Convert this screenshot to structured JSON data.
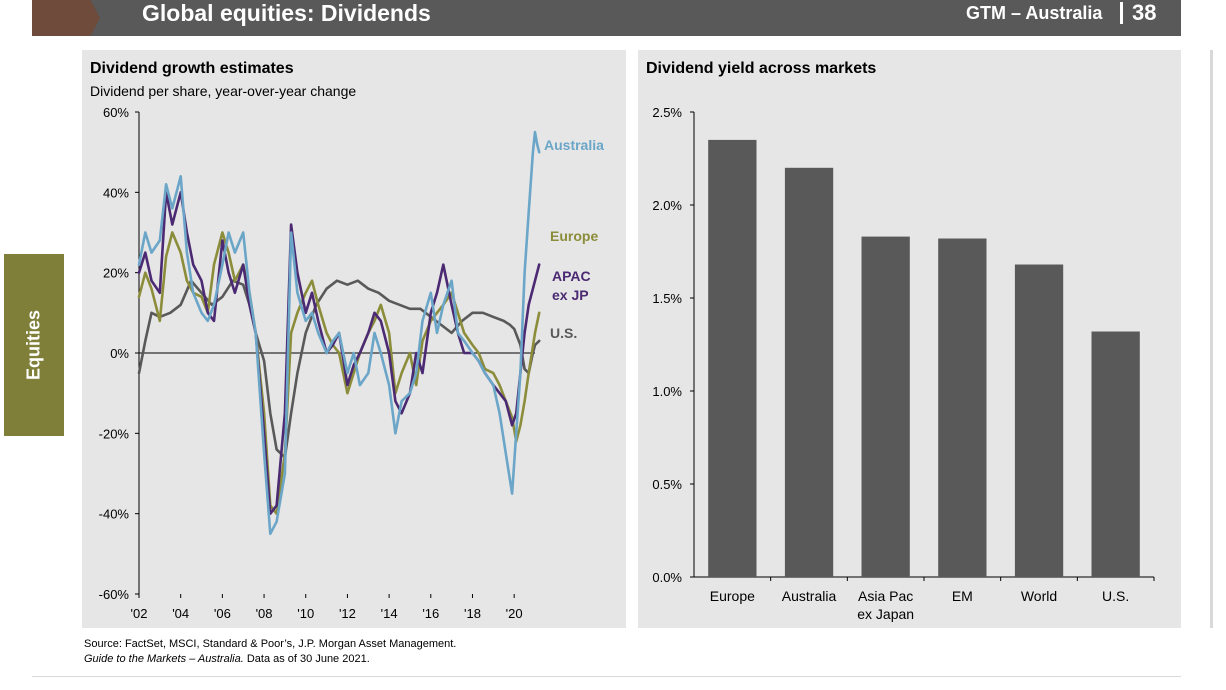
{
  "header": {
    "title": "Global equities: Dividends",
    "right_label": "GTM – Australia",
    "page_number": "38",
    "bar_color": "#595959",
    "accent_color": "#6e4b3a"
  },
  "side_tab": {
    "label": "Equities",
    "color": "#7f7f3a"
  },
  "left_panel": {
    "title": "Dividend growth estimates",
    "subtitle": "Dividend per share, year-over-year change"
  },
  "right_panel": {
    "title": "Dividend yield across markets"
  },
  "footer": {
    "source": "Source: FactSet, MSCI, Standard & Poor’s, J.P. Morgan Asset Management.",
    "guide_italic": "Guide to the Markets – Australia.",
    "guide_rest": " Data as of 30 June 2021."
  },
  "chart_data": [
    {
      "type": "line",
      "title": "Dividend growth estimates",
      "subtitle": "Dividend per share, year-over-year change",
      "xlabel": "",
      "ylabel": "",
      "xlim": [
        2002,
        2021
      ],
      "ylim": [
        -60,
        60
      ],
      "y_ticks": [
        60,
        40,
        20,
        0,
        -20,
        -40,
        -60
      ],
      "y_tick_labels": [
        "60%",
        "40%",
        "20%",
        "0%",
        "-20%",
        "-40%",
        "-60%"
      ],
      "x_ticks": [
        2002,
        2004,
        2006,
        2008,
        2010,
        2012,
        2014,
        2016,
        2018,
        2020
      ],
      "x_tick_labels": [
        "'02",
        "'04",
        "'06",
        "'08",
        "'10",
        "'12",
        "'14",
        "'16",
        "'18",
        "'20"
      ],
      "grid": false,
      "legend": "labels at right end of lines",
      "series": [
        {
          "name": "U.S.",
          "color": "#595959",
          "x": [
            2002,
            2002.3,
            2002.6,
            2003,
            2003.5,
            2004,
            2004.5,
            2005,
            2005.5,
            2006,
            2006.5,
            2007,
            2007.3,
            2007.6,
            2008,
            2008.3,
            2008.6,
            2009,
            2009.3,
            2009.6,
            2010,
            2010.5,
            2011,
            2011.5,
            2012,
            2012.5,
            2013,
            2013.5,
            2014,
            2014.5,
            2015,
            2015.5,
            2016,
            2016.5,
            2017,
            2017.5,
            2018,
            2018.5,
            2019,
            2019.5,
            2019.8,
            2020,
            2020.3,
            2020.5,
            2020.7,
            2020.9,
            2021.0,
            2021.2
          ],
          "values": [
            -5,
            3,
            10,
            9,
            10,
            12,
            18,
            15,
            12,
            14,
            18,
            17,
            12,
            5,
            -2,
            -15,
            -24,
            -26,
            -15,
            -5,
            5,
            12,
            16,
            18,
            17,
            18,
            16,
            15,
            13,
            12,
            11,
            11,
            9,
            7,
            5,
            8,
            10,
            10,
            9,
            8,
            7,
            6,
            2,
            -4,
            -5,
            0,
            2,
            3
          ]
        },
        {
          "name": "Europe",
          "color": "#8b8d3b",
          "x": [
            2002,
            2002.3,
            2002.6,
            2003,
            2003.3,
            2003.6,
            2004,
            2004.3,
            2004.6,
            2005,
            2005.3,
            2005.6,
            2006,
            2006.3,
            2006.6,
            2007,
            2007.3,
            2007.6,
            2008,
            2008.3,
            2008.6,
            2009,
            2009.3,
            2009.6,
            2010,
            2010.3,
            2010.6,
            2011,
            2011.3,
            2011.6,
            2012,
            2012.3,
            2012.6,
            2013,
            2013.3,
            2013.6,
            2014,
            2014.3,
            2014.6,
            2015,
            2015.3,
            2015.6,
            2016,
            2016.3,
            2016.6,
            2017,
            2017.3,
            2017.6,
            2018,
            2018.3,
            2018.6,
            2019,
            2019.3,
            2019.6,
            2019.9,
            2020.1,
            2020.3,
            2020.5,
            2020.7,
            2021.0,
            2021.2
          ],
          "values": [
            14,
            20,
            16,
            8,
            24,
            30,
            25,
            18,
            15,
            14,
            10,
            22,
            30,
            25,
            18,
            22,
            15,
            5,
            -15,
            -38,
            -40,
            -25,
            5,
            10,
            15,
            18,
            12,
            5,
            2,
            0,
            -10,
            -5,
            0,
            5,
            8,
            12,
            5,
            -10,
            -5,
            0,
            -8,
            3,
            8,
            10,
            12,
            15,
            10,
            5,
            2,
            0,
            -4,
            -5,
            -8,
            -12,
            -16,
            -22,
            -18,
            -12,
            -5,
            5,
            10
          ]
        },
        {
          "name": "APAC ex JP",
          "color": "#4b2a73",
          "x": [
            2002,
            2002.3,
            2002.6,
            2003,
            2003.3,
            2003.6,
            2004,
            2004.3,
            2004.6,
            2005,
            2005.3,
            2005.6,
            2006,
            2006.3,
            2006.6,
            2007,
            2007.3,
            2007.6,
            2008,
            2008.3,
            2008.6,
            2009,
            2009.3,
            2009.6,
            2010,
            2010.3,
            2010.6,
            2011,
            2011.3,
            2011.6,
            2012,
            2012.3,
            2012.6,
            2013,
            2013.3,
            2013.6,
            2014,
            2014.3,
            2014.6,
            2015,
            2015.3,
            2015.6,
            2016,
            2016.3,
            2016.6,
            2017,
            2017.3,
            2017.6,
            2018,
            2018.3,
            2018.6,
            2019,
            2019.3,
            2019.6,
            2019.9,
            2020.1,
            2020.3,
            2020.5,
            2020.7,
            2021.0,
            2021.2
          ],
          "values": [
            20,
            25,
            18,
            15,
            40,
            32,
            40,
            30,
            22,
            18,
            10,
            8,
            28,
            20,
            15,
            22,
            12,
            5,
            -20,
            -40,
            -38,
            -15,
            32,
            20,
            10,
            15,
            8,
            0,
            2,
            5,
            -8,
            -3,
            0,
            5,
            10,
            8,
            0,
            -12,
            -15,
            -10,
            0,
            -5,
            10,
            15,
            22,
            12,
            5,
            0,
            0,
            -2,
            -5,
            -8,
            -10,
            -12,
            -18,
            -15,
            -5,
            5,
            12,
            18,
            22
          ]
        },
        {
          "name": "Australia",
          "color": "#6ba6c8",
          "x": [
            2002,
            2002.3,
            2002.6,
            2003,
            2003.3,
            2003.6,
            2004,
            2004.3,
            2004.6,
            2005,
            2005.3,
            2005.6,
            2006,
            2006.3,
            2006.6,
            2007,
            2007.3,
            2007.6,
            2008,
            2008.3,
            2008.6,
            2009,
            2009.3,
            2009.6,
            2010,
            2010.3,
            2010.6,
            2011,
            2011.3,
            2011.6,
            2012,
            2012.3,
            2012.6,
            2013,
            2013.3,
            2013.6,
            2014,
            2014.3,
            2014.6,
            2015,
            2015.3,
            2015.6,
            2016,
            2016.3,
            2016.6,
            2017,
            2017.3,
            2017.6,
            2018,
            2018.3,
            2018.6,
            2019,
            2019.3,
            2019.6,
            2019.9,
            2020.1,
            2020.3,
            2020.5,
            2020.7,
            2020.9,
            2021.0,
            2021.1,
            2021.2
          ],
          "values": [
            22,
            30,
            25,
            28,
            42,
            36,
            44,
            25,
            15,
            10,
            8,
            12,
            22,
            30,
            25,
            30,
            15,
            5,
            -25,
            -45,
            -42,
            -30,
            30,
            15,
            8,
            10,
            5,
            0,
            3,
            5,
            -5,
            0,
            -8,
            -5,
            5,
            0,
            -8,
            -20,
            -12,
            -10,
            -5,
            8,
            15,
            5,
            12,
            18,
            5,
            3,
            0,
            -2,
            -5,
            -8,
            -15,
            -25,
            -35,
            -20,
            -5,
            20,
            35,
            50,
            55,
            52,
            50
          ]
        }
      ],
      "series_labels": [
        {
          "series": "Australia",
          "lines": [
            "Australia"
          ],
          "color": "#6ba6c8"
        },
        {
          "series": "Europe",
          "lines": [
            "Europe"
          ],
          "color": "#8b8d3b"
        },
        {
          "series": "APAC ex JP",
          "lines": [
            "APAC",
            "ex JP"
          ],
          "color": "#4b2a73"
        },
        {
          "series": "U.S.",
          "lines": [
            "U.S."
          ],
          "color": "#595959"
        }
      ]
    },
    {
      "type": "bar",
      "title": "Dividend yield across markets",
      "xlabel": "",
      "ylabel": "",
      "categories": [
        "Europe",
        "Australia",
        "Asia Pac ex Japan",
        "EM",
        "World",
        "U.S."
      ],
      "category_label_lines": [
        [
          "Europe"
        ],
        [
          "Australia"
        ],
        [
          "Asia Pac",
          "ex Japan"
        ],
        [
          "EM"
        ],
        [
          "World"
        ],
        [
          "U.S."
        ]
      ],
      "values": [
        2.35,
        2.2,
        1.83,
        1.82,
        1.68,
        1.32
      ],
      "ylim": [
        0,
        2.5
      ],
      "y_ticks": [
        2.5,
        2.0,
        1.5,
        1.0,
        0.5,
        0.0
      ],
      "y_tick_labels": [
        "2.5%",
        "2.0%",
        "1.5%",
        "1.0%",
        "0.5%",
        "0.0%"
      ],
      "bar_color": "#595959",
      "grid": false
    }
  ]
}
